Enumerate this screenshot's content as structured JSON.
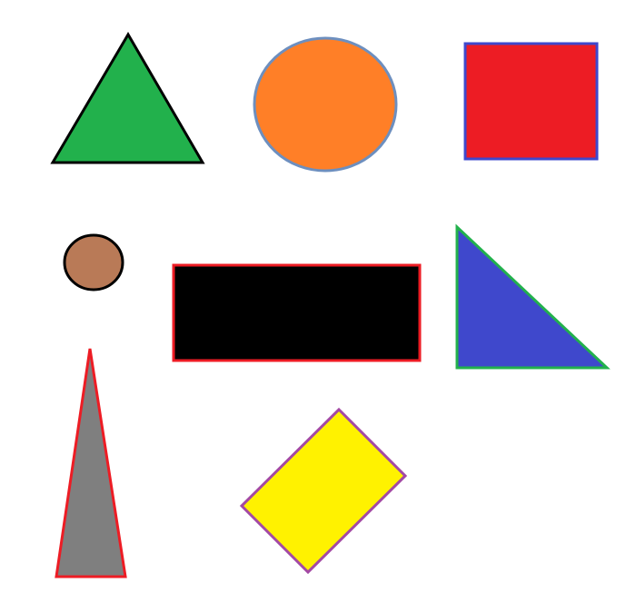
{
  "canvas": {
    "background": "#ffffff"
  },
  "shapes": [
    {
      "id": "green-triangle",
      "kind": "triangle",
      "fill": "#22b14c",
      "stroke": "#000000"
    },
    {
      "id": "orange-circle",
      "kind": "ellipse",
      "fill": "#ff7f27",
      "stroke": "#6d8fbf"
    },
    {
      "id": "red-square",
      "kind": "square",
      "fill": "#ed1c24",
      "stroke": "#3f48cc"
    },
    {
      "id": "brown-small-circle",
      "kind": "ellipse",
      "fill": "#b97a57",
      "stroke": "#000000"
    },
    {
      "id": "black-rectangle",
      "kind": "rectangle",
      "fill": "#000000",
      "stroke": "#ed1c24"
    },
    {
      "id": "blue-right-triangle",
      "kind": "right-triangle",
      "fill": "#3f48cc",
      "stroke": "#22b14c"
    },
    {
      "id": "gray-tall-triangle",
      "kind": "triangle",
      "fill": "#7f7f7f",
      "stroke": "#ed1c24"
    },
    {
      "id": "yellow-rotated-rectangle",
      "kind": "rotated-rectangle",
      "fill": "#fff200",
      "stroke": "#a349a4"
    }
  ]
}
